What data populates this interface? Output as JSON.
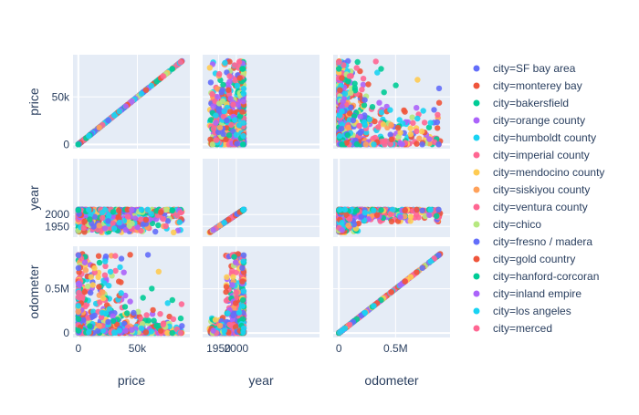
{
  "chart_data": {
    "type": "scatter",
    "subtype": "scatter_matrix",
    "variables": [
      "price",
      "year",
      "odometer"
    ],
    "axis_titles": {
      "price": "price",
      "year": "year",
      "odometer": "odometer"
    },
    "ranges": {
      "price": [
        -4500,
        94500
      ],
      "year": [
        1905,
        2235
      ],
      "odometer": [
        -50000,
        980000
      ]
    },
    "ticks": {
      "price": [
        {
          "value": 0,
          "label": "0"
        },
        {
          "value": 50000,
          "label": "50k"
        }
      ],
      "year": [
        {
          "value": 1950,
          "label": "1950"
        },
        {
          "value": 2000,
          "label": "2000"
        }
      ],
      "odometer": [
        {
          "value": 0,
          "label": "0"
        },
        {
          "value": 500000,
          "label": "0.5M"
        }
      ]
    },
    "series": [
      {
        "name": "city=SF bay area",
        "color": "#636efa"
      },
      {
        "name": "city=monterey bay",
        "color": "#EF553B"
      },
      {
        "name": "city=bakersfield",
        "color": "#00cc96"
      },
      {
        "name": "city=orange county",
        "color": "#ab63fa"
      },
      {
        "name": "city=humboldt county",
        "color": "#19d3f3"
      },
      {
        "name": "city=imperial county",
        "color": "#FF6692"
      },
      {
        "name": "city=mendocino county",
        "color": "#FECB52"
      },
      {
        "name": "city=siskiyou county",
        "color": "#FFA15A"
      },
      {
        "name": "city=ventura county",
        "color": "#FF6692"
      },
      {
        "name": "city=chico",
        "color": "#B6E880"
      },
      {
        "name": "city=fresno / madera",
        "color": "#636efa"
      },
      {
        "name": "city=gold country",
        "color": "#EF553B"
      },
      {
        "name": "city=hanford-corcoran",
        "color": "#00cc96"
      },
      {
        "name": "city=inland empire",
        "color": "#ab63fa"
      },
      {
        "name": "city=los angeles",
        "color": "#19d3f3"
      },
      {
        "name": "city=merced",
        "color": "#FF6692"
      }
    ],
    "legend_position": "right",
    "grid": true,
    "plot_bgcolor": "#E5ECF6"
  }
}
